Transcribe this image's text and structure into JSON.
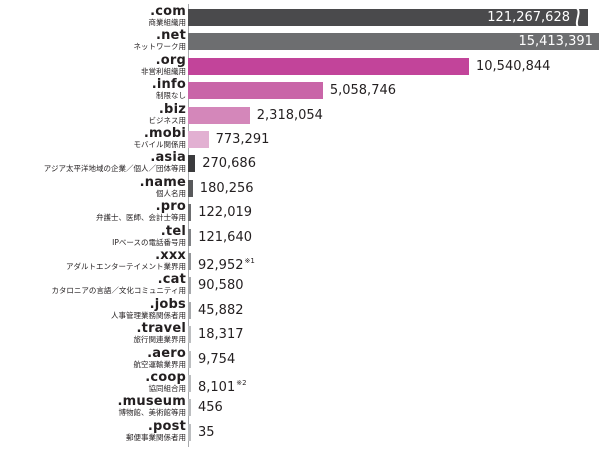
{
  "chart_data": {
    "type": "bar",
    "orientation": "horizontal",
    "title": "",
    "xlabel": "",
    "ylabel": "",
    "axis_break_on_first_bar": true,
    "categories": [
      {
        "tld": ".com",
        "desc": "商業組織用",
        "value": 121267628,
        "label": "121,267,628",
        "note": "",
        "color": "#4a4a4c"
      },
      {
        "tld": ".net",
        "desc": "ネットワーク用",
        "value": 15413391,
        "label": "15,413,391",
        "note": "",
        "color": "#6d6e70"
      },
      {
        "tld": ".org",
        "desc": "非営利組織用",
        "value": 10540844,
        "label": "10,540,844",
        "note": "",
        "color": "#c2449a"
      },
      {
        "tld": ".info",
        "desc": "制限なし",
        "value": 5058746,
        "label": "5,058,746",
        "note": "",
        "color": "#c965a8"
      },
      {
        "tld": ".biz",
        "desc": "ビジネス用",
        "value": 2318054,
        "label": "2,318,054",
        "note": "",
        "color": "#d487ba"
      },
      {
        "tld": ".mobi",
        "desc": "モバイル関係用",
        "value": 773291,
        "label": "773,291",
        "note": "",
        "color": "#e2b0d2"
      },
      {
        "tld": ".asia",
        "desc": "アジア太平洋地域の企業／個人／団体等用",
        "value": 270686,
        "label": "270,686",
        "note": "",
        "color": "#3b3b3d"
      },
      {
        "tld": ".name",
        "desc": "個人名用",
        "value": 180256,
        "label": "180,256",
        "note": "",
        "color": "#58595b"
      },
      {
        "tld": ".pro",
        "desc": "弁護士、医師、会計士等用",
        "value": 122019,
        "label": "122,019",
        "note": "",
        "color": "#6d6e70"
      },
      {
        "tld": ".tel",
        "desc": "IPベースの電話番号用",
        "value": 121640,
        "label": "121,640",
        "note": "",
        "color": "#808285"
      },
      {
        "tld": ".xxx",
        "desc": "アダルトエンターテイメント業界用",
        "value": 92952,
        "label": "92,952",
        "note": "※1",
        "color": "#939598"
      },
      {
        "tld": ".cat",
        "desc": "カタロニアの言語／文化コミュニティ用",
        "value": 90580,
        "label": "90,580",
        "note": "",
        "color": "#a7a9ac"
      },
      {
        "tld": ".jobs",
        "desc": "人事管理業務関係者用",
        "value": 45882,
        "label": "45,882",
        "note": "",
        "color": "#a7a9ac"
      },
      {
        "tld": ".travel",
        "desc": "旅行関連業界用",
        "value": 18317,
        "label": "18,317",
        "note": "",
        "color": "#bcbec0"
      },
      {
        "tld": ".aero",
        "desc": "航空運輸業界用",
        "value": 9754,
        "label": "9,754",
        "note": "",
        "color": "#bcbec0"
      },
      {
        "tld": ".coop",
        "desc": "協同組合用",
        "value": 8101,
        "label": "8,101",
        "note": "※2",
        "color": "#bcbec0"
      },
      {
        "tld": ".museum",
        "desc": "博物館、美術館等用",
        "value": 456,
        "label": "456",
        "note": "",
        "color": "#bcbec0"
      },
      {
        "tld": ".post",
        "desc": "郵便事業関係者用",
        "value": 35,
        "label": "35",
        "note": "",
        "color": "#bcbec0"
      }
    ]
  }
}
